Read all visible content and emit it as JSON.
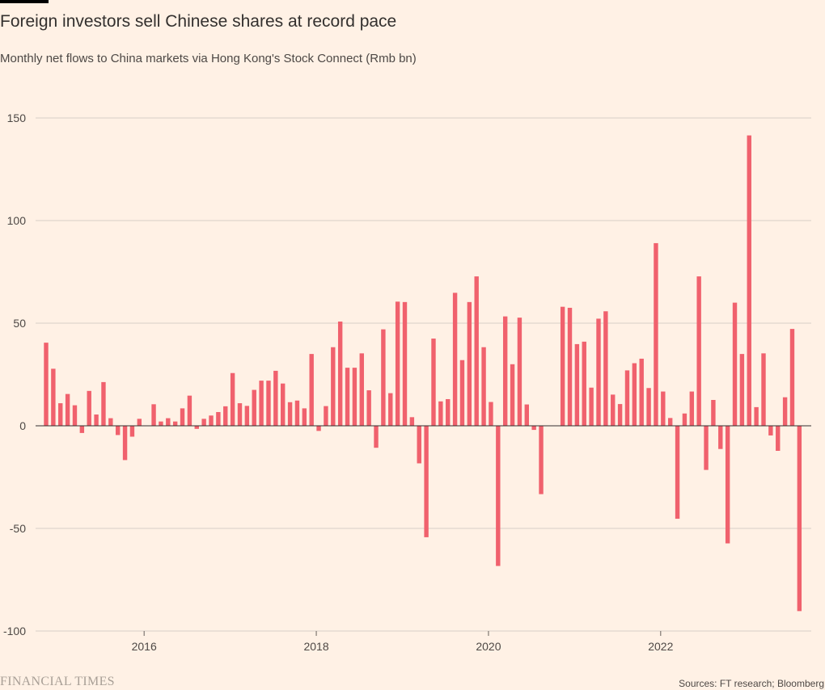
{
  "title": "Foreign investors sell Chinese shares at record pace",
  "subtitle": "Monthly net flows to China markets via Hong Kong's Stock Connect (Rmb bn)",
  "source": "Sources: FT research; Bloomberg",
  "logo_text": "FINANCIAL TIMES",
  "colors": {
    "bar": "#f0616d",
    "background": "#fff1e5",
    "grid": "#d7cfc7",
    "zero_line": "#33302e"
  },
  "chart_data": {
    "type": "bar",
    "x_axis": {
      "type": "date",
      "first_month": "2014-11",
      "last_month": "2023-08",
      "tick_labels": [
        "2016",
        "2018",
        "2020",
        "2022"
      ]
    },
    "ylim": [
      -100,
      150
    ],
    "y_tick_labels": [
      "150",
      "100",
      "50",
      "0",
      "-50",
      "-100"
    ],
    "y_tick_values": [
      150,
      100,
      50,
      0,
      -50,
      -100
    ],
    "grid": true,
    "series": [
      {
        "values": [
          40.5,
          27.8,
          11,
          15.5,
          10,
          -3.5,
          17,
          5.5,
          21.3,
          3.7,
          -4.5,
          -16.7,
          -5.3,
          3.4,
          0,
          10.5,
          2.1,
          3.7,
          2.1,
          8.5,
          14.7,
          -1.5,
          3.4,
          5,
          6.7,
          9.5,
          25.7,
          11,
          9.7,
          17.5,
          22,
          22,
          26.8,
          20.6,
          11.5,
          12.3,
          8.5,
          35,
          -2.5,
          9.6,
          38.3,
          50.8,
          28.3,
          28.3,
          35.3,
          17.3,
          -10.7,
          47,
          15.9,
          60.5,
          60.3,
          4.2,
          -18.3,
          -54.3,
          42.5,
          11.9,
          13,
          64.8,
          32,
          60.3,
          72.8,
          38.3,
          11.6,
          -68.3,
          53.3,
          30,
          52.7,
          10.4,
          -2,
          -33.3,
          0,
          0,
          58,
          57.5,
          39.8,
          41,
          18.6,
          52.2,
          55.8,
          15.2,
          10.6,
          27,
          30.5,
          32.7,
          18.4,
          89,
          16.7,
          3.8,
          -45.3,
          6,
          16.7,
          72.8,
          -21.5,
          12.6,
          -11.3,
          -57.3,
          60,
          35,
          141.5,
          9.1,
          35.3,
          -4.7,
          -12.2,
          13.9,
          47.2,
          -90.3
        ]
      }
    ]
  }
}
